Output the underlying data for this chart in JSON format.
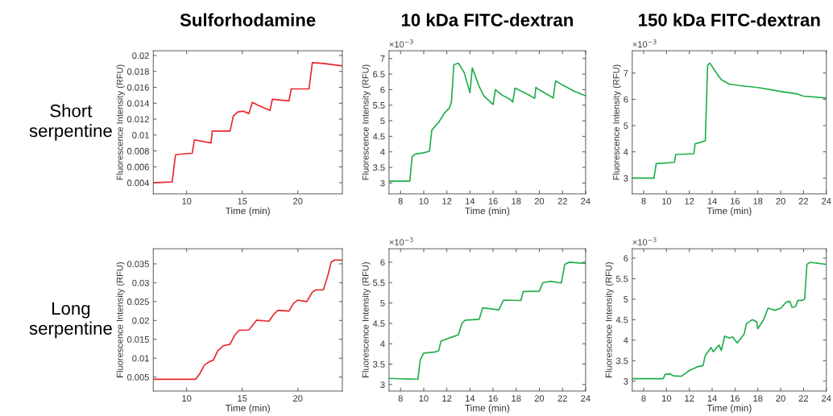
{
  "chart_data": [
    {
      "type": "line",
      "title": "Sulforhodamine",
      "xlabel": "Time (min)",
      "ylabel": "Fluorescence Intensity (RFU)",
      "annotations": [
        "Short\nserpentine"
      ],
      "xlim": [
        7,
        24
      ],
      "xticks": [
        10,
        15,
        20
      ],
      "ylim": [
        0.0026,
        0.0206
      ],
      "yticks": [
        0.004,
        0.006,
        0.008,
        0.01,
        0.012,
        0.014,
        0.016,
        0.018,
        0.02
      ],
      "series": [
        {
          "color": "#e8262b",
          "x": [
            7,
            8.7,
            9.0,
            9.5,
            10.5,
            10.7,
            12.2,
            12.3,
            13.9,
            14.2,
            14.6,
            15.1,
            15.6,
            15.9,
            16.5,
            17.5,
            17.7,
            19.2,
            19.4,
            21.0,
            21.3,
            22.3,
            24
          ],
          "values": [
            0.004,
            0.0041,
            0.0075,
            0.0076,
            0.0077,
            0.0094,
            0.009,
            0.0105,
            0.0105,
            0.0124,
            0.0129,
            0.013,
            0.0127,
            0.0141,
            0.0137,
            0.0131,
            0.0145,
            0.0143,
            0.0158,
            0.0158,
            0.0191,
            0.019,
            0.0187
          ]
        }
      ]
    },
    {
      "type": "line",
      "title": "10 kDa FITC-dextran",
      "xlabel": "Time (min)",
      "ylabel": "Fluorescence Intensity (RFU)",
      "annotations": [
        "×10$^{−3}$"
      ],
      "xlim": [
        7,
        24
      ],
      "xticks": [
        8,
        10,
        12,
        14,
        16,
        18,
        20,
        22,
        24
      ],
      "ylim": [
        2.65,
        7.25
      ],
      "yticks": [
        3,
        3.5,
        4,
        4.5,
        5,
        5.5,
        6,
        6.5,
        7
      ],
      "series": [
        {
          "color": "#1fae4b",
          "x": [
            7,
            8.8,
            9.0,
            9.3,
            10.0,
            10.5,
            10.7,
            11.3,
            11.8,
            12.2,
            12.4,
            12.6,
            13.0,
            13.5,
            14.0,
            14.2,
            14.8,
            15.2,
            16.0,
            16.2,
            16.8,
            17.5,
            17.7,
            17.9,
            19.0,
            19.6,
            19.7,
            20.2,
            21.2,
            21.4,
            22.0,
            23.0,
            24
          ],
          "values": [
            3.06,
            3.06,
            3.85,
            3.93,
            3.97,
            4.02,
            4.7,
            4.95,
            5.25,
            5.4,
            5.6,
            6.8,
            6.85,
            6.55,
            5.9,
            6.7,
            6.1,
            5.8,
            5.52,
            6.0,
            5.82,
            5.68,
            5.6,
            6.05,
            5.85,
            5.72,
            6.07,
            5.95,
            5.73,
            6.28,
            6.15,
            5.95,
            5.8
          ]
        }
      ]
    },
    {
      "type": "line",
      "title": "150 kDa FITC-dextran",
      "xlabel": "Time (min)",
      "ylabel": "Fluorescence Intensity (RFU)",
      "annotations": [
        "×10$^{−3}$"
      ],
      "xlim": [
        7,
        24
      ],
      "xticks": [
        8,
        10,
        12,
        14,
        16,
        18,
        20,
        22,
        24
      ],
      "ylim": [
        2.4,
        7.85
      ],
      "yticks": [
        3,
        4,
        5,
        6,
        7
      ],
      "series": [
        {
          "color": "#1fae4b",
          "x": [
            7,
            8.9,
            9.1,
            10.7,
            10.8,
            12.4,
            12.5,
            13.4,
            13.6,
            13.8,
            14.3,
            14.8,
            15.5,
            16.5,
            18,
            20,
            21.5,
            22,
            24
          ],
          "values": [
            3.0,
            3.0,
            3.55,
            3.6,
            3.9,
            3.93,
            4.3,
            4.42,
            7.3,
            7.38,
            7.05,
            6.75,
            6.58,
            6.52,
            6.45,
            6.3,
            6.2,
            6.12,
            6.05
          ]
        }
      ]
    },
    {
      "type": "line",
      "xlabel": "Time (min)",
      "ylabel": "Fluorescence Intensity (RFU)",
      "annotations": [
        "Long\nserpentine"
      ],
      "xlim": [
        7,
        24
      ],
      "xticks": [
        10,
        15,
        20
      ],
      "ylim": [
        0.0013,
        0.039
      ],
      "yticks": [
        0.005,
        0.01,
        0.015,
        0.02,
        0.025,
        0.03,
        0.035
      ],
      "series": [
        {
          "color": "#e8262b",
          "x": [
            7,
            10.8,
            11.2,
            11.6,
            12.0,
            12.4,
            12.8,
            13.3,
            13.9,
            14.3,
            14.7,
            15.6,
            16.0,
            16.3,
            17.4,
            17.8,
            18.2,
            19.2,
            19.6,
            20.0,
            20.8,
            21.3,
            21.6,
            22.3,
            22.7,
            23.0,
            23.3,
            24
          ],
          "values": [
            0.0044,
            0.0044,
            0.006,
            0.0082,
            0.009,
            0.0095,
            0.012,
            0.0133,
            0.0137,
            0.016,
            0.0174,
            0.0175,
            0.019,
            0.0201,
            0.0198,
            0.0215,
            0.0227,
            0.0225,
            0.0245,
            0.0254,
            0.025,
            0.0275,
            0.0281,
            0.0281,
            0.032,
            0.0355,
            0.036,
            0.036
          ]
        }
      ]
    },
    {
      "type": "line",
      "xlabel": "Time (min)",
      "ylabel": "Fluorescence Intensity (RFU)",
      "annotations": [
        "×10$^{−3}$"
      ],
      "xlim": [
        7,
        24
      ],
      "xticks": [
        8,
        10,
        12,
        14,
        16,
        18,
        20,
        22,
        24
      ],
      "ylim": [
        2.84,
        6.33
      ],
      "yticks": [
        3,
        3.5,
        4,
        4.5,
        5,
        5.5,
        6
      ],
      "series": [
        {
          "color": "#1fae4b",
          "x": [
            7,
            8,
            9.5,
            9.7,
            10.0,
            11.0,
            11.3,
            11.5,
            12.5,
            13.0,
            13.3,
            13.6,
            14.8,
            15.1,
            16.0,
            16.5,
            16.9,
            18.4,
            18.6,
            20.0,
            20.3,
            21.0,
            21.9,
            22.2,
            22.6,
            24
          ],
          "values": [
            3.15,
            3.14,
            3.13,
            3.6,
            3.77,
            3.8,
            3.83,
            4.07,
            4.17,
            4.22,
            4.5,
            4.58,
            4.6,
            4.88,
            4.85,
            4.83,
            5.07,
            5.06,
            5.28,
            5.29,
            5.5,
            5.53,
            5.49,
            5.95,
            6.0,
            5.97
          ]
        }
      ]
    },
    {
      "type": "line",
      "xlabel": "Time (min)",
      "ylabel": "Fluorescence Intensity (RFU)",
      "annotations": [
        "×10$^{−3}$"
      ],
      "xlim": [
        7,
        24
      ],
      "xticks": [
        8,
        10,
        12,
        14,
        16,
        18,
        20,
        22,
        24
      ],
      "ylim": [
        2.76,
        6.23
      ],
      "yticks": [
        3,
        3.5,
        4,
        4.5,
        5,
        5.5,
        6
      ],
      "series": [
        {
          "color": "#1fae4b",
          "x": [
            7,
            9.7,
            9.9,
            10.3,
            10.6,
            11.3,
            12,
            12.7,
            13.2,
            13.4,
            13.9,
            14.1,
            14.6,
            14.8,
            15.1,
            15.5,
            15.8,
            16.2,
            16.8,
            17.0,
            17.5,
            17.9,
            18.0,
            18.5,
            18.9,
            19.5,
            20.0,
            20.5,
            20.8,
            21.0,
            21.3,
            21.5,
            21.9,
            22.1,
            22.3,
            22.6,
            24
          ],
          "values": [
            3.06,
            3.06,
            3.17,
            3.18,
            3.13,
            3.12,
            3.26,
            3.35,
            3.38,
            3.63,
            3.82,
            3.72,
            3.88,
            3.75,
            4.1,
            4.05,
            4.08,
            3.93,
            4.15,
            4.4,
            4.5,
            4.45,
            4.28,
            4.5,
            4.78,
            4.73,
            4.78,
            4.93,
            4.95,
            4.8,
            4.82,
            4.97,
            4.97,
            5.0,
            5.85,
            5.9,
            5.85
          ]
        }
      ]
    }
  ]
}
